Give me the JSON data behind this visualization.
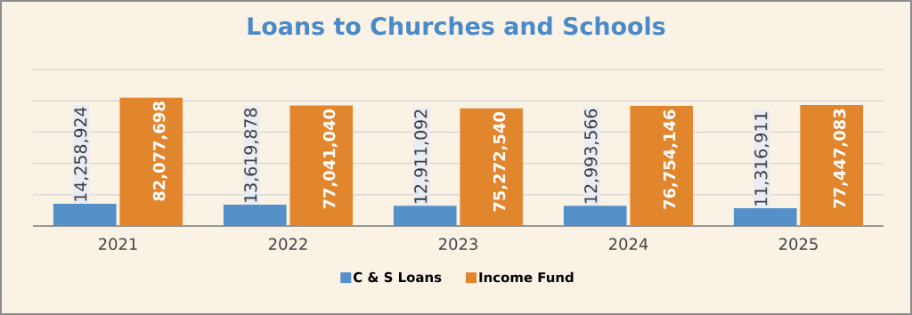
{
  "chart_data": {
    "type": "bar",
    "title": "Loans to Churches and Schools",
    "categories": [
      "2021",
      "2022",
      "2023",
      "2024",
      "2025"
    ],
    "series": [
      {
        "name": "C & S Loans",
        "color": "#5590c8",
        "values": [
          14258924,
          13619878,
          12911092,
          12993566,
          11316911
        ],
        "value_labels": [
          "14,258,924",
          "13,619,878",
          "12,911,092",
          "12,993,566",
          "11,316,911"
        ]
      },
      {
        "name": "Income Fund",
        "color": "#e2862e",
        "values": [
          82077698,
          77041040,
          75272540,
          76754146,
          77447083
        ],
        "value_labels": [
          "82,077,698",
          "77,041,040",
          "75,272,540",
          "76,754,146",
          "77,447,083"
        ]
      }
    ],
    "grid": "y",
    "legend": "bottom",
    "tick_labels": "x"
  }
}
